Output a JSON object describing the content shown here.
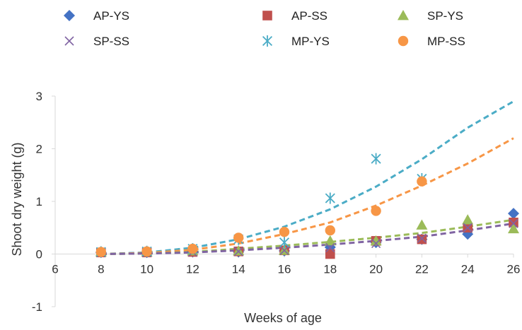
{
  "chart_data": {
    "type": "scatter",
    "title": "",
    "xlabel": "Weeks of age",
    "ylabel": "Shoot dry weight (g)",
    "xlim": [
      6,
      26
    ],
    "ylim": [
      -1,
      3
    ],
    "xticks": [
      6,
      8,
      10,
      12,
      14,
      16,
      18,
      20,
      22,
      24,
      26
    ],
    "yticks": [
      -1,
      0,
      1,
      2,
      3
    ],
    "grid": false,
    "legend_position": "top",
    "series": [
      {
        "name": "AP-YS",
        "color": "#4472C4",
        "marker": "diamond",
        "x": [
          8,
          10,
          12,
          14,
          16,
          18,
          20,
          22,
          24,
          26
        ],
        "y": [
          0.03,
          0.03,
          0.04,
          0.04,
          0.06,
          0.13,
          0.22,
          0.28,
          0.38,
          0.77
        ]
      },
      {
        "name": "AP-SS",
        "color": "#C0504D",
        "marker": "square",
        "x": [
          8,
          10,
          12,
          14,
          16,
          18,
          20,
          22,
          24,
          26
        ],
        "y": [
          0.03,
          0.03,
          0.04,
          0.05,
          0.07,
          0.0,
          0.25,
          0.28,
          0.5,
          0.6
        ]
      },
      {
        "name": "SP-YS",
        "color": "#9BBB59",
        "marker": "triangle",
        "x": [
          8,
          10,
          12,
          14,
          16,
          18,
          20,
          22,
          24,
          26
        ],
        "y": [
          0.04,
          0.04,
          0.06,
          0.06,
          0.07,
          0.25,
          0.25,
          0.55,
          0.65,
          0.48
        ]
      },
      {
        "name": "SP-SS",
        "color": "#8064A2",
        "marker": "x",
        "x": [
          8,
          10,
          12,
          14,
          16,
          18,
          20,
          22,
          24,
          26
        ],
        "y": [
          0.03,
          0.03,
          0.04,
          0.05,
          0.07,
          0.12,
          0.2,
          0.3,
          0.5,
          0.58
        ]
      },
      {
        "name": "MP-YS",
        "color": "#4BACC6",
        "marker": "asterisk",
        "x": [
          8,
          10,
          12,
          14,
          16,
          18,
          20,
          22
        ],
        "y": [
          0.04,
          0.05,
          0.1,
          0.28,
          0.22,
          1.06,
          1.81,
          1.43
        ]
      },
      {
        "name": "MP-SS",
        "color": "#F79646",
        "marker": "circle",
        "x": [
          8,
          10,
          12,
          14,
          16,
          18,
          20,
          22
        ],
        "y": [
          0.04,
          0.05,
          0.1,
          0.31,
          0.42,
          0.45,
          0.82,
          1.38
        ]
      }
    ],
    "trendlines": [
      {
        "color": "#4BACC6",
        "style": "dashed",
        "x": [
          8,
          10,
          12,
          14,
          16,
          18,
          20,
          22,
          24,
          26
        ],
        "y": [
          0.0,
          0.03,
          0.12,
          0.28,
          0.52,
          0.85,
          1.28,
          1.8,
          2.4,
          2.9
        ]
      },
      {
        "color": "#F79646",
        "style": "dashed",
        "x": [
          8,
          10,
          12,
          14,
          16,
          18,
          20,
          22,
          24,
          26
        ],
        "y": [
          0.0,
          0.02,
          0.08,
          0.2,
          0.38,
          0.6,
          0.92,
          1.3,
          1.72,
          2.2
        ]
      },
      {
        "color": "#9BBB59",
        "style": "dashed",
        "x": [
          8,
          10,
          12,
          14,
          16,
          18,
          20,
          22,
          24,
          26
        ],
        "y": [
          0.0,
          0.01,
          0.04,
          0.1,
          0.16,
          0.23,
          0.31,
          0.4,
          0.52,
          0.65
        ]
      },
      {
        "color": "#8064A2",
        "style": "dashed",
        "x": [
          8,
          10,
          12,
          14,
          16,
          18,
          20,
          22,
          24,
          26
        ],
        "y": [
          0.0,
          0.01,
          0.03,
          0.07,
          0.12,
          0.18,
          0.25,
          0.33,
          0.45,
          0.58
        ]
      }
    ]
  }
}
